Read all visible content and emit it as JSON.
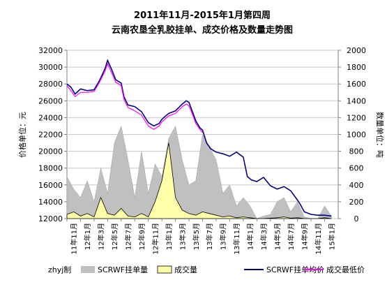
{
  "chart_data": {
    "type": "line",
    "title": "2011年11月-2015年1月第四周",
    "subtitle": "云南农垦全乳胶挂单、成交价格及数量走势图",
    "ylabel_left": "价格单位：元",
    "ylabel_right": "数量单位：吨",
    "ylim_left": [
      12000,
      32000
    ],
    "ylim_right": [
      0,
      2000
    ],
    "yticks_left": [
      "12000",
      "14000",
      "16000",
      "18000",
      "20000",
      "22000",
      "24000",
      "26000",
      "28000",
      "30000",
      "32000"
    ],
    "yticks_right": [
      "0",
      "200",
      "400",
      "600",
      "800",
      "1000",
      "1200",
      "1400",
      "1600",
      "1800",
      "2000"
    ],
    "x_categories": [
      "11年11月",
      "12年1月",
      "12年3月",
      "12年5月",
      "12年7月",
      "12年9月",
      "12年11月",
      "13年1月",
      "13年3月",
      "13年5月",
      "13年7月",
      "13年9月",
      "13年11月",
      "14年1月",
      "14年3月",
      "14年5月",
      "14年7月",
      "14年9月",
      "14年11月",
      "15年1月"
    ],
    "footer_note": "zhyj制",
    "grid": true,
    "legend_position": "bottom",
    "series": [
      {
        "name": "SCRWF挂单量",
        "kind": "area",
        "axis": "right",
        "color": "#c0c0c0",
        "x": [
          0,
          0.5,
          1,
          1.5,
          2,
          2.5,
          3,
          3.5,
          4,
          4.5,
          5,
          5.5,
          6,
          6.5,
          7,
          7.5,
          8,
          8.5,
          9,
          9.5,
          10,
          10.5,
          11,
          11.5,
          12,
          12.5,
          13,
          13.5,
          14,
          14.5,
          15,
          15.5,
          16,
          16.5,
          17,
          17.5,
          18,
          18.5,
          19,
          19.5
        ],
        "values": [
          500,
          350,
          250,
          450,
          200,
          600,
          300,
          900,
          1100,
          700,
          250,
          800,
          300,
          650,
          500,
          950,
          1100,
          700,
          400,
          450,
          1000,
          850,
          700,
          300,
          400,
          150,
          250,
          150,
          0,
          30,
          50,
          200,
          250,
          80,
          200,
          20,
          0,
          0,
          150,
          30
        ]
      },
      {
        "name": "成交量",
        "kind": "area",
        "axis": "right",
        "color": "#ffffaa",
        "x": [
          0,
          0.5,
          1,
          1.5,
          2,
          2.5,
          3,
          3.5,
          4,
          4.5,
          5,
          5.5,
          6,
          6.5,
          7,
          7.5,
          8,
          8.5,
          9,
          9.5,
          10,
          10.5,
          11,
          11.5,
          12,
          12.5,
          13,
          13.5,
          14,
          14.5,
          15,
          15.5,
          16,
          16.5,
          17,
          17.5,
          18,
          18.5,
          19,
          19.5
        ],
        "values": [
          50,
          80,
          30,
          60,
          20,
          250,
          60,
          40,
          120,
          30,
          20,
          60,
          20,
          200,
          450,
          900,
          250,
          100,
          60,
          40,
          80,
          60,
          40,
          20,
          30,
          10,
          20,
          10,
          0,
          0,
          5,
          10,
          20,
          5,
          10,
          0,
          0,
          0,
          10,
          0
        ]
      },
      {
        "name": "SCRWF挂单均价",
        "kind": "line",
        "axis": "left",
        "color": "#000080",
        "x": [
          0,
          0.3,
          0.6,
          1,
          1.5,
          2,
          2.4,
          2.8,
          3,
          3.3,
          3.6,
          4,
          4.2,
          4.5,
          5,
          5.5,
          6,
          6.4,
          6.8,
          7,
          7.5,
          8,
          8.5,
          8.8,
          9,
          9.3,
          9.5,
          9.8,
          10,
          10.3,
          10.6,
          11,
          11.5,
          12,
          12.5,
          13,
          13.3,
          13.6,
          14,
          14.5,
          15,
          15.5,
          16,
          16.5,
          17,
          17.2,
          17.5,
          18,
          18.5,
          19,
          19.5
        ],
        "values": [
          28000,
          27600,
          26800,
          27400,
          27200,
          27300,
          28400,
          29800,
          30800,
          29700,
          28500,
          28100,
          26500,
          25500,
          25300,
          24700,
          23400,
          23000,
          23300,
          23800,
          24500,
          24800,
          25600,
          26000,
          25800,
          24500,
          23600,
          22800,
          22500,
          21000,
          20300,
          19900,
          19700,
          19400,
          19900,
          19300,
          17000,
          16600,
          16400,
          16900,
          15900,
          15500,
          15800,
          15300,
          14200,
          13700,
          12800,
          12500,
          12400,
          12400,
          12300
        ]
      },
      {
        "name": "成交最低价",
        "kind": "line",
        "axis": "left",
        "color": "#ff00ff",
        "x": [
          0,
          0.3,
          0.6,
          1,
          1.5,
          2,
          2.4,
          2.8,
          3,
          3.3,
          3.6,
          4,
          4.2,
          4.5,
          5,
          5.5,
          6,
          6.4,
          6.8,
          7,
          7.5,
          8,
          8.5,
          8.8,
          9,
          9.3,
          9.5,
          9.8,
          10
        ],
        "values": [
          27800,
          27200,
          26500,
          27000,
          27000,
          27100,
          28200,
          29500,
          30400,
          29300,
          28200,
          27800,
          26200,
          25200,
          24800,
          24300,
          23000,
          22600,
          23000,
          23500,
          24200,
          24500,
          25300,
          25600,
          25400,
          24200,
          23300,
          22600,
          22200
        ]
      }
    ]
  }
}
